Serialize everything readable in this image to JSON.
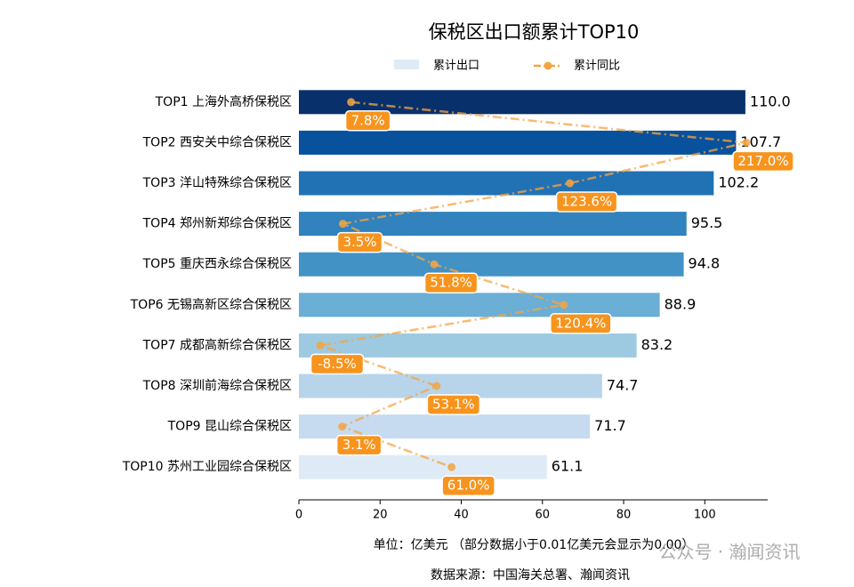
{
  "chart_data": {
    "type": "bar",
    "orientation": "horizontal",
    "title": "保税区出口额累计TOP10",
    "categories": [
      "TOP1 上海外高桥保税区",
      "TOP2 西安关中综合保税区",
      "TOP3 洋山特殊综合保税区",
      "TOP4 郑州新郑综合保税区",
      "TOP5 重庆西永综合保税区",
      "TOP6 无锡高新区综合保税区",
      "TOP7 成都高新综合保税区",
      "TOP8 深圳前海综合保税区",
      "TOP9 昆山综合保税区",
      "TOP10 苏州工业园综合保税区"
    ],
    "series": [
      {
        "name": "累计出口",
        "type": "bar",
        "colors": [
          "#08306b",
          "#08519c",
          "#2171b5",
          "#3182bd",
          "#4292c6",
          "#6baed6",
          "#9ecae1",
          "#b7d4ea",
          "#c6dbef",
          "#deebf7"
        ],
        "values": [
          110.0,
          107.7,
          102.2,
          95.5,
          94.8,
          88.9,
          83.2,
          74.7,
          71.7,
          61.1
        ],
        "value_labels": [
          "110.0",
          "107.7",
          "102.2",
          "95.5",
          "94.8",
          "88.9",
          "83.2",
          "74.7",
          "71.7",
          "61.1"
        ]
      },
      {
        "name": "累计同比",
        "type": "line",
        "axis": "x2",
        "color": "#f5a442",
        "values": [
          7.8,
          217.0,
          123.6,
          3.5,
          51.8,
          120.4,
          -8.5,
          53.1,
          3.1,
          61.0
        ],
        "value_labels": [
          "7.8%",
          "217.0%",
          "123.6%",
          "3.5%",
          "51.8%",
          "120.4%",
          "-8.5%",
          "53.1%",
          "3.1%",
          "61.0%"
        ]
      }
    ],
    "xlabel": "单位：亿美元 （部分数据小于0.01亿美元会显示为0.00）",
    "xlim": [
      0,
      115.5
    ],
    "xticks": [
      0,
      20,
      40,
      60,
      80,
      100
    ],
    "x2lim": [
      -19.8,
      228.3
    ],
    "source": "数据来源：中国海关总署、瀚闻资讯",
    "watermark": "公众号 · 瀚闻资讯"
  }
}
